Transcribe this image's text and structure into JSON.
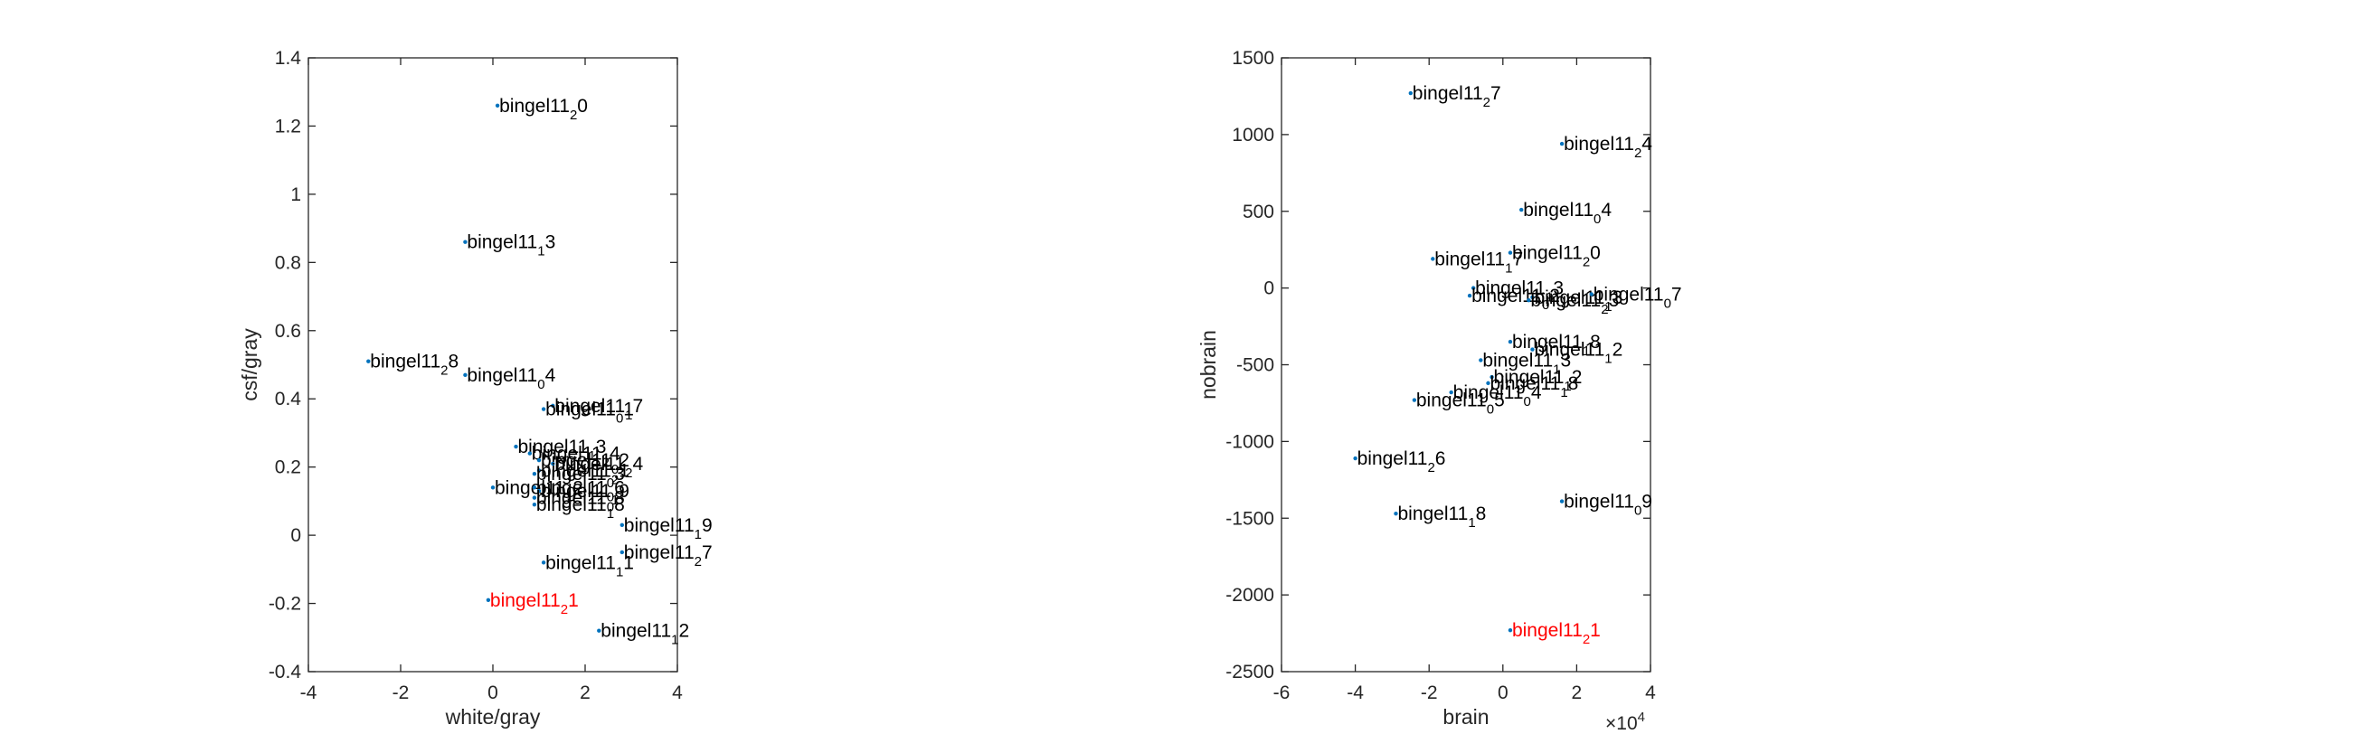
{
  "chart_data": [
    {
      "type": "scatter",
      "title": "",
      "xlabel": "white/gray",
      "ylabel": "csf/gray",
      "xlim": [
        -4,
        4
      ],
      "ylim": [
        -0.4,
        1.4
      ],
      "xticks": [
        "-4",
        "-2",
        "0",
        "2",
        "4"
      ],
      "xtick_values": [
        -4,
        -2,
        0,
        2,
        4
      ],
      "yticks": [
        "-0.4",
        "-0.2",
        "0",
        "0.2",
        "0.4",
        "0.6",
        "0.8",
        "1",
        "1.2",
        "1.4"
      ],
      "ytick_values": [
        -0.4,
        -0.2,
        0,
        0.2,
        0.4,
        0.6,
        0.8,
        1.0,
        1.2,
        1.4
      ],
      "grid": false,
      "marker_color": "#0072bd",
      "highlight_color": "#ff0000",
      "points": [
        {
          "x": 0.1,
          "y": 1.26,
          "base": "bingel11",
          "sub": "2",
          "suffix": "0"
        },
        {
          "x": -0.6,
          "y": 0.86,
          "base": "bingel11",
          "sub": "1",
          "suffix": "3"
        },
        {
          "x": -2.7,
          "y": 0.51,
          "base": "bingel11",
          "sub": "2",
          "suffix": "8"
        },
        {
          "x": -0.6,
          "y": 0.47,
          "base": "bingel11",
          "sub": "0",
          "suffix": "4"
        },
        {
          "x": 1.3,
          "y": 0.38,
          "base": "bingel11",
          "sub": "1",
          "suffix": "7"
        },
        {
          "x": 1.1,
          "y": 0.37,
          "base": "bingel11",
          "sub": "0",
          "suffix": "1"
        },
        {
          "x": 0.5,
          "y": 0.26,
          "base": "bingel11",
          "sub": "1",
          "suffix": "3"
        },
        {
          "x": 0.8,
          "y": 0.24,
          "base": "bingel11",
          "sub": "2",
          "suffix": "4"
        },
        {
          "x": 1.0,
          "y": 0.22,
          "base": "bingel11",
          "sub": "0",
          "suffix": "2"
        },
        {
          "x": 1.3,
          "y": 0.21,
          "base": "bingel11",
          "sub": "2",
          "suffix": "4"
        },
        {
          "x": 1.0,
          "y": 0.19,
          "base": "bingel11",
          "sub": "2",
          "suffix": "1"
        },
        {
          "x": 0.9,
          "y": 0.18,
          "base": "bingel11",
          "sub": "0",
          "suffix": "3"
        },
        {
          "x": 0.0,
          "y": 0.14,
          "base": "bingel11",
          "sub": "1",
          "suffix": "2"
        },
        {
          "x": 0.9,
          "y": 0.14,
          "base": "bingel11",
          "sub": "0",
          "suffix": "6"
        },
        {
          "x": 1.0,
          "y": 0.13,
          "base": "bingel11",
          "sub": "1",
          "suffix": "9"
        },
        {
          "x": 0.9,
          "y": 0.11,
          "base": "bingel11",
          "sub": "0",
          "suffix": "8"
        },
        {
          "x": 0.9,
          "y": 0.09,
          "base": "bingel11",
          "sub": "1",
          "suffix": "8"
        },
        {
          "x": 2.8,
          "y": 0.03,
          "base": "bingel11",
          "sub": "1",
          "suffix": "9"
        },
        {
          "x": 2.8,
          "y": -0.05,
          "base": "bingel11",
          "sub": "2",
          "suffix": "7"
        },
        {
          "x": 1.1,
          "y": -0.08,
          "base": "bingel11",
          "sub": "1",
          "suffix": "1"
        },
        {
          "x": -0.1,
          "y": -0.19,
          "base": "bingel11",
          "sub": "2",
          "suffix": "1",
          "highlight": true
        },
        {
          "x": 2.3,
          "y": -0.28,
          "base": "bingel11",
          "sub": "1",
          "suffix": "2"
        }
      ]
    },
    {
      "type": "scatter",
      "title": "",
      "xlabel": "brain",
      "ylabel": "nobrain",
      "xlim": [
        -6,
        4
      ],
      "ylim": [
        -2500,
        1500
      ],
      "xticks": [
        "-6",
        "-4",
        "-2",
        "0",
        "2",
        "4"
      ],
      "xtick_values": [
        -6,
        -4,
        -2,
        0,
        2,
        4
      ],
      "yticks": [
        "-2500",
        "-2000",
        "-1500",
        "-1000",
        "-500",
        "0",
        "500",
        "1000",
        "1500"
      ],
      "ytick_values": [
        -2500,
        -2000,
        -1500,
        -1000,
        -500,
        0,
        500,
        1000,
        1500
      ],
      "x_exponent_base": "×10",
      "x_exponent_power": "4",
      "grid": false,
      "marker_color": "#0072bd",
      "highlight_color": "#ff0000",
      "points": [
        {
          "x": -2.5,
          "y": 1270,
          "base": "bingel11",
          "sub": "2",
          "suffix": "7"
        },
        {
          "x": 1.6,
          "y": 940,
          "base": "bingel11",
          "sub": "2",
          "suffix": "4"
        },
        {
          "x": 0.5,
          "y": 510,
          "base": "bingel11",
          "sub": "0",
          "suffix": "4"
        },
        {
          "x": -1.9,
          "y": 190,
          "base": "bingel11",
          "sub": "1",
          "suffix": "7"
        },
        {
          "x": 0.2,
          "y": 230,
          "base": "bingel11",
          "sub": "2",
          "suffix": "0"
        },
        {
          "x": -0.8,
          "y": 0,
          "base": "bingel11",
          "sub": "1",
          "suffix": "3"
        },
        {
          "x": -0.9,
          "y": -50,
          "base": "bingel11",
          "sub": "0",
          "suffix": "2"
        },
        {
          "x": 0.8,
          "y": -60,
          "base": "bingel11",
          "sub": "1",
          "suffix": "3"
        },
        {
          "x": 0.7,
          "y": -80,
          "base": "bingel11",
          "sub": "2",
          "suffix": "3"
        },
        {
          "x": 2.4,
          "y": -40,
          "base": "bingel11",
          "sub": "0",
          "suffix": "7"
        },
        {
          "x": 0.2,
          "y": -350,
          "base": "bingel11",
          "sub": "1",
          "suffix": "8"
        },
        {
          "x": 0.8,
          "y": -400,
          "base": "bingel11",
          "sub": "1",
          "suffix": "2"
        },
        {
          "x": -0.6,
          "y": -470,
          "base": "bingel11",
          "sub": "1",
          "suffix": "3"
        },
        {
          "x": -0.3,
          "y": -580,
          "base": "bingel11",
          "sub": "1",
          "suffix": "2"
        },
        {
          "x": -0.4,
          "y": -620,
          "base": "bingel11",
          "sub": "1",
          "suffix": "8"
        },
        {
          "x": -1.4,
          "y": -680,
          "base": "bingel11",
          "sub": "0",
          "suffix": "4"
        },
        {
          "x": -2.4,
          "y": -730,
          "base": "bingel11",
          "sub": "0",
          "suffix": "5"
        },
        {
          "x": -4.0,
          "y": -1110,
          "base": "bingel11",
          "sub": "2",
          "suffix": "6"
        },
        {
          "x": 1.6,
          "y": -1390,
          "base": "bingel11",
          "sub": "0",
          "suffix": "9"
        },
        {
          "x": -2.9,
          "y": -1470,
          "base": "bingel11",
          "sub": "1",
          "suffix": "8"
        },
        {
          "x": 0.2,
          "y": -2230,
          "base": "bingel11",
          "sub": "2",
          "suffix": "1",
          "highlight": true
        }
      ]
    }
  ]
}
